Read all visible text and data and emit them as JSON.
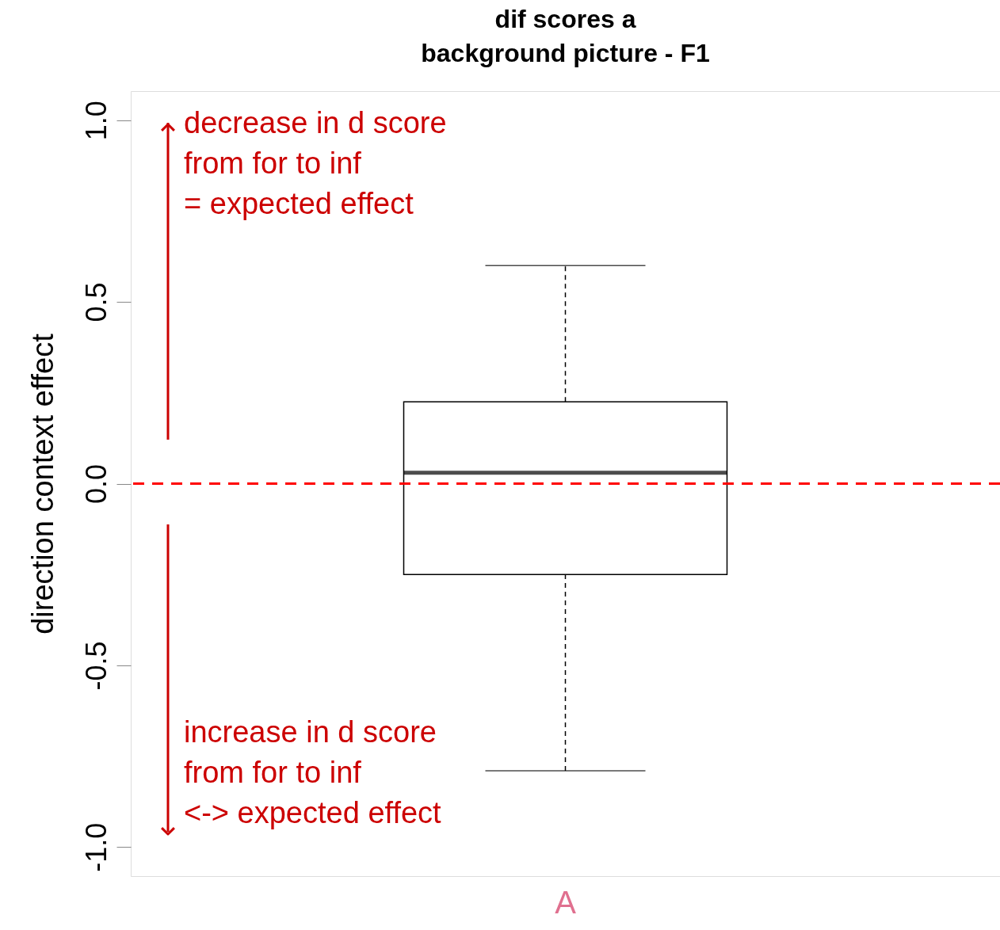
{
  "chart_data": {
    "type": "box",
    "title": "dif scores a\nbackground picture - F1",
    "ylabel": "direction context effect",
    "categories": [
      "A"
    ],
    "boxes": [
      {
        "low": -0.79,
        "q1": -0.25,
        "median": 0.03,
        "q3": 0.225,
        "high": 0.6
      }
    ],
    "ylim": [
      -1.08,
      1.08
    ],
    "yticks": [
      {
        "value": -1,
        "label": "-1.0"
      },
      {
        "value": -0.5,
        "label": "-0.5"
      },
      {
        "value": 0,
        "label": "0.0"
      },
      {
        "value": 0.5,
        "label": "0.5"
      },
      {
        "value": 1,
        "label": "1.0"
      }
    ],
    "ref_lines": [
      {
        "axis": "y",
        "value": 0,
        "color": "#ff0000",
        "line_style": "dashed"
      }
    ],
    "annotations": [
      "decrease in d score\nfrom for to inf\n= expected effect",
      "increase in d score\nfrom for to inf\n<-> expected effect"
    ]
  }
}
